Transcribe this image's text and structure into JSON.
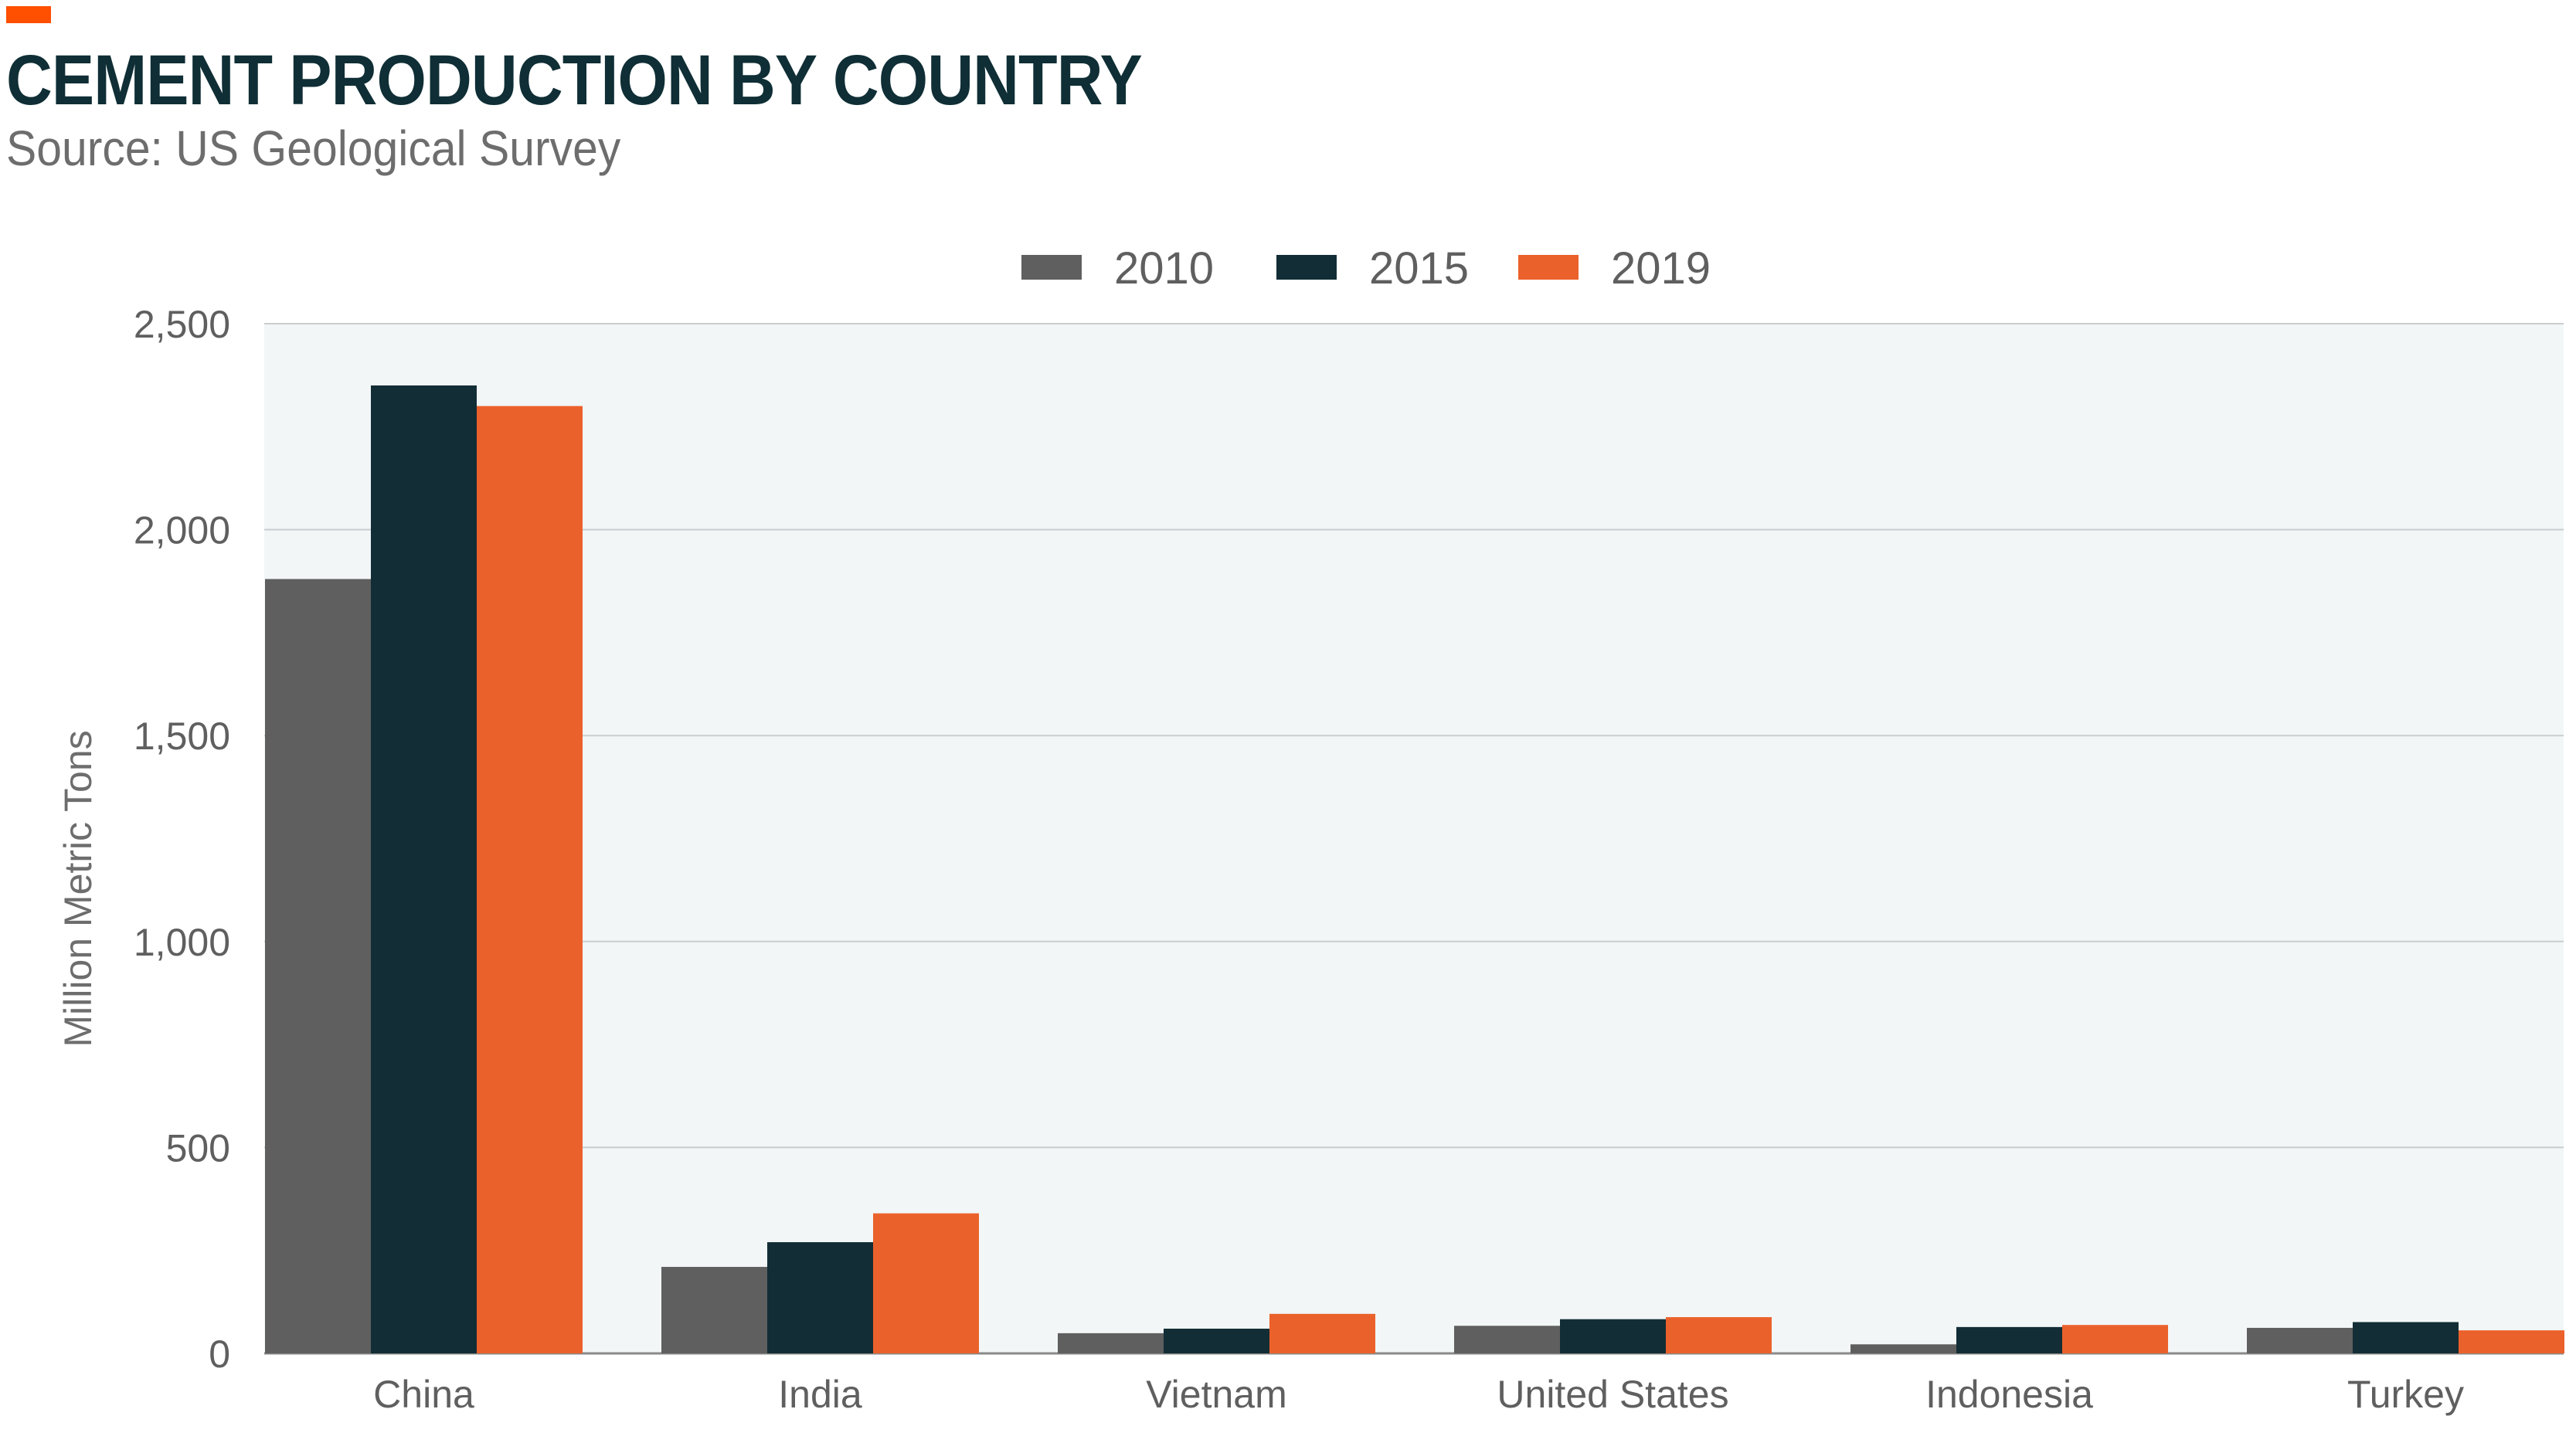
{
  "header": {
    "title": "CEMENT PRODUCTION BY COUNTRY",
    "subtitle": "Source: US Geological Survey",
    "accent_color": "#ff4f00"
  },
  "chart_data": {
    "type": "bar",
    "title": "CEMENT PRODUCTION BY COUNTRY",
    "xlabel": "",
    "ylabel": "Million Metric Tons",
    "ylim": [
      0,
      2500
    ],
    "yticks": [
      0,
      500,
      1000,
      1500,
      2000,
      2500
    ],
    "ytick_labels": [
      "0",
      "500",
      "1,000",
      "1,500",
      "2,000",
      "2,500"
    ],
    "grid": true,
    "legend_position": "top-center",
    "categories": [
      "China",
      "India",
      "Vietnam",
      "United States",
      "Indonesia",
      "Turkey"
    ],
    "series": [
      {
        "name": "2010",
        "color": "#5f5f5f",
        "values": [
          1880,
          210,
          49,
          67,
          22,
          62
        ]
      },
      {
        "name": "2015",
        "color": "#122d35",
        "values": [
          2350,
          270,
          60,
          83,
          64,
          76
        ]
      },
      {
        "name": "2019",
        "color": "#eb612b",
        "values": [
          2300,
          340,
          96,
          88,
          69,
          56
        ]
      }
    ]
  }
}
